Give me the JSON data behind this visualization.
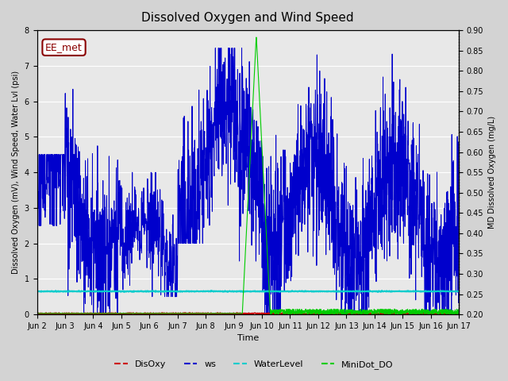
{
  "title": "Dissolved Oxygen and Wind Speed",
  "ylabel_left": "Dissolved Oxygen (mV), Wind Speed, Water Lvl (psi)",
  "ylabel_right": "MD Dissolved Oxygen (mg/L)",
  "xlabel": "Time",
  "ylim_left": [
    0.0,
    8.0
  ],
  "ylim_right": [
    0.2,
    0.9
  ],
  "yticks_left": [
    0.0,
    1.0,
    2.0,
    3.0,
    4.0,
    5.0,
    6.0,
    7.0,
    8.0
  ],
  "yticks_right": [
    0.2,
    0.25,
    0.3,
    0.35,
    0.4,
    0.45,
    0.5,
    0.55,
    0.6,
    0.65,
    0.7,
    0.75,
    0.8,
    0.85,
    0.9
  ],
  "xtick_labels": [
    "Jun 2",
    "Jun 3",
    "Jun 4",
    "Jun 5",
    "Jun 6",
    "Jun 7",
    "Jun 8",
    "Jun 9",
    "Jun 10",
    "Jun 11",
    "Jun 12",
    "Jun 13",
    "Jun 14",
    "Jun 15",
    "Jun 16",
    "Jun 17"
  ],
  "annotation_text": "EE_met",
  "annotation_color": "#8B0000",
  "bg_color": "#d3d3d3",
  "plot_bg_color": "#e8e8e8",
  "ws_color": "#0000CC",
  "disoxy_color": "#CC0000",
  "waterlevel_color": "#00CCCC",
  "minidot_color": "#00CC00",
  "legend_labels": [
    "DisOxy",
    "ws",
    "WaterLevel",
    "MiniDot_DO"
  ],
  "legend_colors": [
    "#CC0000",
    "#0000CC",
    "#00CCCC",
    "#00CC00"
  ]
}
